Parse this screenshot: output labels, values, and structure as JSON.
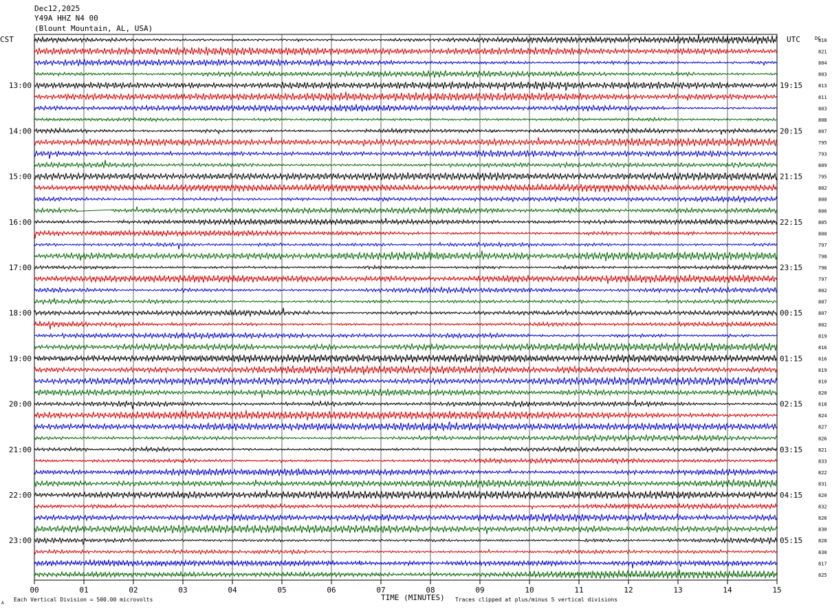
{
  "header": {
    "date": "Dec12,2025",
    "station": "Y49A HHZ N4 00",
    "location": "(Blount Mountain, AL, USA)"
  },
  "left_axis_label": "CST",
  "right_axis_label": "UTC",
  "dc_label": "DC",
  "x_axis_title": "TIME (MINUTES)",
  "footer": {
    "scale_note": "Each Vertical Division =  500.00 microvolts",
    "clip_note": "Traces clipped at plus/minus 5 vertical divisions",
    "corner_mark": "A"
  },
  "colors": {
    "trace_cycle": [
      "#000000",
      "#d40000",
      "#0000cc",
      "#006400"
    ],
    "grid": "#000000",
    "frame": "#000000"
  },
  "chart_data": {
    "type": "line",
    "title": "",
    "xlabel": "TIME (MINUTES)",
    "ylabel": "",
    "xlim": [
      0,
      15
    ],
    "x_ticks": [
      "00",
      "01",
      "02",
      "03",
      "04",
      "05",
      "06",
      "07",
      "08",
      "09",
      "10",
      "11",
      "12",
      "13",
      "14",
      "15"
    ],
    "trace_count": 48,
    "minutes_per_trace": 15,
    "left_hour_labels": [
      {
        "trace": 4,
        "label": "13:00"
      },
      {
        "trace": 8,
        "label": "14:00"
      },
      {
        "trace": 12,
        "label": "15:00"
      },
      {
        "trace": 16,
        "label": "16:00"
      },
      {
        "trace": 20,
        "label": "17:00"
      },
      {
        "trace": 24,
        "label": "18:00"
      },
      {
        "trace": 28,
        "label": "19:00"
      },
      {
        "trace": 32,
        "label": "20:00"
      },
      {
        "trace": 36,
        "label": "21:00"
      },
      {
        "trace": 40,
        "label": "22:00"
      },
      {
        "trace": 44,
        "label": "23:00"
      }
    ],
    "right_time_labels": [
      {
        "trace": 4,
        "label": "19:15"
      },
      {
        "trace": 8,
        "label": "20:15"
      },
      {
        "trace": 12,
        "label": "21:15"
      },
      {
        "trace": 16,
        "label": "22:15"
      },
      {
        "trace": 20,
        "label": "23:15"
      },
      {
        "trace": 24,
        "label": "00:15"
      },
      {
        "trace": 28,
        "label": "01:15"
      },
      {
        "trace": 32,
        "label": "02:15"
      },
      {
        "trace": 36,
        "label": "03:15"
      },
      {
        "trace": 40,
        "label": "04:15"
      },
      {
        "trace": 44,
        "label": "05:15"
      }
    ],
    "dc_offsets": [
      "810",
      "821",
      "804",
      "803",
      "813",
      "811",
      "803",
      "808",
      "807",
      "795",
      "793",
      "809",
      "795",
      "802",
      "800",
      "806",
      "805",
      "800",
      "797",
      "798",
      "796",
      "797",
      "802",
      "807",
      "807",
      "802",
      "819",
      "816",
      "816",
      "819",
      "810",
      "820",
      "818",
      "824",
      "827",
      "826",
      "821",
      "833",
      "822",
      "831",
      "820",
      "832",
      "826",
      "830",
      "828",
      "830",
      "817",
      "825"
    ],
    "gap": {
      "trace": 15,
      "start_min": 0.88,
      "end_min": 1.55
    }
  }
}
